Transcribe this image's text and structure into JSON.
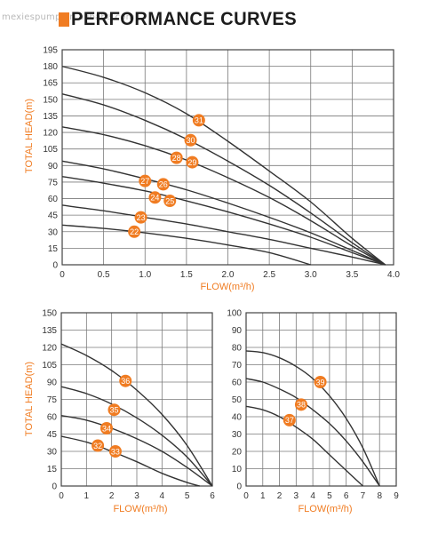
{
  "page": {
    "watermark": "mexiespump.en.alibaba.com",
    "title": "PERFORMANCE CURVES"
  },
  "colors": {
    "accent": "#f07c22",
    "curve": "#333333",
    "grid": "#7a7a7a",
    "text": "#333333"
  },
  "chart_data": [
    {
      "type": "line",
      "xlabel": "FLOW(m³/h)",
      "ylabel": "TOTAL HEAD(m)",
      "xlim": [
        0,
        4.0
      ],
      "ylim": [
        0,
        195
      ],
      "xticks": [
        "0",
        "0.5",
        "1.0",
        "1.5",
        "2.0",
        "2.5",
        "3.0",
        "3.5",
        "4.0"
      ],
      "yticks": [
        "0",
        "15",
        "30",
        "45",
        "60",
        "75",
        "90",
        "105",
        "120",
        "135",
        "150",
        "165",
        "180",
        "195"
      ],
      "grid": true,
      "series": [
        {
          "name": "31",
          "x": [
            0,
            0.5,
            1.0,
            1.5,
            2.0,
            2.5,
            3.0,
            3.5,
            3.9
          ],
          "y": [
            180,
            170,
            156,
            137,
            112,
            85,
            57,
            24,
            0
          ],
          "label_at": [
            1.65,
            131
          ]
        },
        {
          "name": "30",
          "x": [
            0,
            0.5,
            1.0,
            1.5,
            2.0,
            2.5,
            3.0,
            3.5,
            3.9
          ],
          "y": [
            155,
            145,
            131,
            114,
            94,
            72,
            47,
            20,
            0
          ],
          "label_at": [
            1.55,
            113
          ]
        },
        {
          "name": "29",
          "x": [
            0,
            0.5,
            1.0,
            1.5,
            2.0,
            2.5,
            3.0,
            3.5,
            3.9
          ],
          "y": [
            125,
            118,
            108,
            95,
            79,
            61,
            40,
            17,
            0
          ],
          "label_at": [
            1.57,
            93
          ]
        },
        {
          "name": "28",
          "x": [
            0,
            0.5,
            1.0,
            1.5,
            2.0,
            2.5,
            3.0,
            3.5,
            3.9
          ],
          "y": [
            125,
            118,
            108,
            95,
            79,
            61,
            40,
            17,
            0
          ],
          "label_at": [
            1.38,
            97
          ]
        },
        {
          "name": "27",
          "x": [
            0,
            0.5,
            1.0,
            1.5,
            2.0,
            2.5,
            3.0,
            3.5,
            3.9
          ],
          "y": [
            94,
            87,
            78,
            68,
            56,
            43,
            29,
            13,
            0
          ],
          "label_at": [
            1.0,
            76
          ]
        },
        {
          "name": "26",
          "x": [
            0,
            0.5,
            1.0,
            1.5,
            2.0,
            2.5,
            3.0,
            3.5,
            3.9
          ],
          "y": [
            80,
            74,
            67,
            58,
            48,
            37,
            25,
            11,
            0
          ],
          "label_at": [
            1.22,
            73
          ]
        },
        {
          "name": "24",
          "x": [
            0,
            0.5,
            1.0,
            1.5,
            2.0,
            2.5,
            3.0,
            3.5,
            3.9
          ],
          "y": [
            80,
            74,
            67,
            58,
            48,
            37,
            25,
            11,
            0
          ],
          "label_at": [
            1.12,
            61
          ]
        },
        {
          "name": "25",
          "x": [
            0,
            0.5,
            1.0,
            1.5,
            2.0,
            2.5,
            3.0,
            3.5,
            3.9
          ],
          "y": [
            80,
            74,
            67,
            58,
            48,
            37,
            25,
            11,
            0
          ],
          "label_at": [
            1.3,
            58
          ]
        },
        {
          "name": "23",
          "x": [
            0,
            0.5,
            1.0,
            1.5,
            2.0,
            2.5,
            3.0,
            3.5,
            3.9
          ],
          "y": [
            54,
            49,
            43,
            37,
            30,
            23,
            15,
            7,
            0
          ],
          "label_at": [
            0.95,
            43
          ]
        },
        {
          "name": "22",
          "x": [
            0,
            0.5,
            1.0,
            1.5,
            2.0,
            2.5,
            3.0
          ],
          "y": [
            36,
            33,
            29,
            24,
            18,
            11,
            0
          ],
          "label_at": [
            0.87,
            30
          ]
        }
      ]
    },
    {
      "type": "line",
      "xlabel": "FLOW(m³/h)",
      "ylabel": "TOTAL HEAD(m)",
      "xlim": [
        0,
        6
      ],
      "ylim": [
        0,
        150
      ],
      "xticks": [
        "0",
        "1",
        "2",
        "3",
        "4",
        "5",
        "6"
      ],
      "yticks": [
        "0",
        "15",
        "30",
        "45",
        "60",
        "75",
        "90",
        "105",
        "120",
        "135",
        "150"
      ],
      "grid": true,
      "series": [
        {
          "name": "36",
          "x": [
            0,
            1,
            2,
            3,
            4,
            5,
            6
          ],
          "y": [
            123,
            113,
            100,
            83,
            62,
            35,
            0
          ],
          "label_at": [
            2.55,
            91
          ]
        },
        {
          "name": "35",
          "x": [
            0,
            1,
            2,
            3,
            4,
            5,
            6
          ],
          "y": [
            86,
            80,
            71,
            59,
            44,
            25,
            0
          ],
          "label_at": [
            2.1,
            66
          ]
        },
        {
          "name": "34",
          "x": [
            0,
            1,
            2,
            3,
            4,
            5,
            6
          ],
          "y": [
            61,
            57,
            50,
            41,
            30,
            16,
            0
          ],
          "label_at": [
            1.8,
            50
          ]
        },
        {
          "name": "32",
          "x": [
            0,
            1,
            2,
            3,
            4,
            5,
            5.5
          ],
          "y": [
            43,
            38,
            30,
            21,
            11,
            3,
            0
          ],
          "label_at": [
            1.45,
            35
          ]
        },
        {
          "name": "33",
          "x": [
            0,
            1,
            2,
            3,
            4,
            5,
            5.5
          ],
          "y": [
            43,
            38,
            30,
            21,
            11,
            3,
            0
          ],
          "label_at": [
            2.15,
            30
          ]
        }
      ]
    },
    {
      "type": "line",
      "xlabel": "FLOW(m³/h)",
      "ylabel": "",
      "xlim": [
        0,
        9
      ],
      "ylim": [
        0,
        100
      ],
      "xticks": [
        "0",
        "1",
        "2",
        "3",
        "4",
        "5",
        "6",
        "7",
        "8",
        "9"
      ],
      "yticks": [
        "0",
        "10",
        "20",
        "30",
        "40",
        "50",
        "60",
        "70",
        "80",
        "90",
        "100"
      ],
      "grid": true,
      "series": [
        {
          "name": "39",
          "x": [
            0,
            1,
            2,
            3,
            4,
            5,
            6,
            7,
            8
          ],
          "y": [
            78,
            77,
            74,
            69,
            62,
            52,
            39,
            22,
            0
          ],
          "label_at": [
            4.45,
            60
          ]
        },
        {
          "name": "38",
          "x": [
            0,
            1,
            2,
            3,
            4,
            5,
            6,
            7,
            8
          ],
          "y": [
            62,
            60,
            56,
            51,
            44,
            36,
            26,
            14,
            0
          ],
          "label_at": [
            3.3,
            47
          ]
        },
        {
          "name": "37",
          "x": [
            0,
            1,
            2,
            3,
            4,
            5,
            6,
            7
          ],
          "y": [
            46,
            44,
            40,
            34,
            27,
            18,
            9,
            0
          ],
          "label_at": [
            2.6,
            38
          ]
        }
      ]
    }
  ]
}
